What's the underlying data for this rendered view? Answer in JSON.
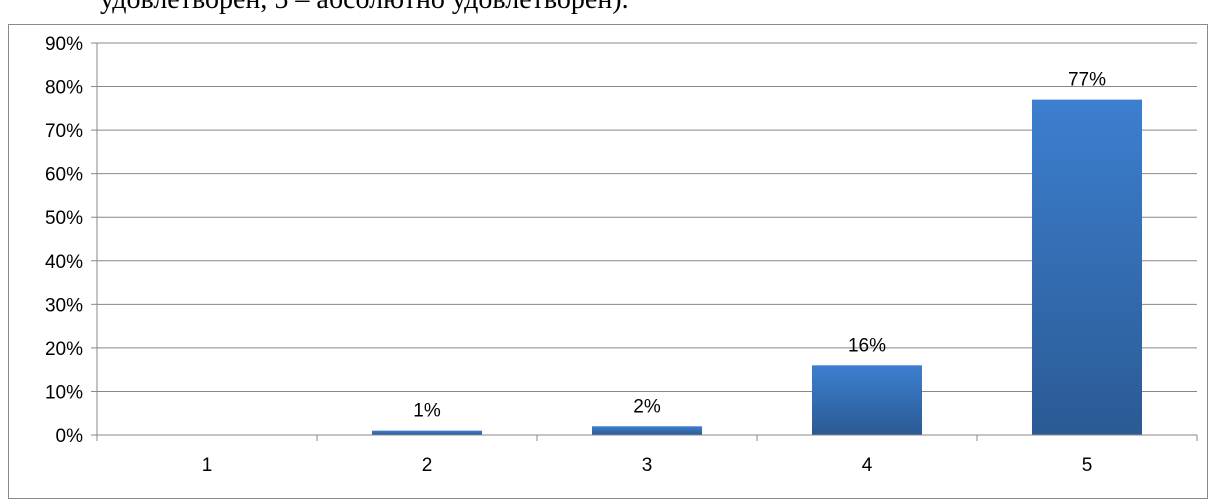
{
  "document": {
    "caption_fragment": "удовлетворен, 5 – абсолютно удовлетворен)."
  },
  "chart_data": {
    "type": "bar",
    "categories": [
      "1",
      "2",
      "3",
      "4",
      "5"
    ],
    "values": [
      0,
      1,
      2,
      16,
      77
    ],
    "value_labels": [
      "",
      "1%",
      "2%",
      "16%",
      "77%"
    ],
    "y_ticks": [
      "0%",
      "10%",
      "20%",
      "30%",
      "40%",
      "50%",
      "60%",
      "70%",
      "80%",
      "90%"
    ],
    "ylim": [
      0,
      90
    ],
    "grid": true,
    "legend": "none",
    "title": "",
    "xlabel": "",
    "ylabel": "",
    "colors": {
      "bar_top": "#3c7fcf",
      "bar_bottom": "#2b5a94",
      "grid": "#888888"
    }
  }
}
